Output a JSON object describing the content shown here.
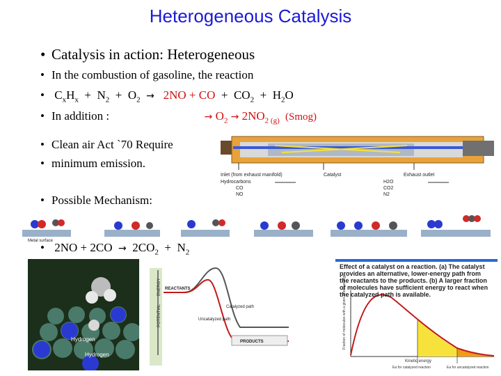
{
  "slide": {
    "title": "Heterogeneous Catalysis",
    "heading": "Catalysis in action:  Heterogeneous",
    "combustion_text": "In the combustion of gasoline, the reaction",
    "reaction": {
      "lhs_c": "C",
      "lhs_x1": "x",
      "lhs_h": "H",
      "lhs_x2": "x",
      "plus1": "+",
      "n": "N",
      "n_sub": "2",
      "plus2": "+",
      "o": "O",
      "o_sub": "2",
      "arrow": "→",
      "products_red": "2NO  +  CO",
      "plus3": "+",
      "co": "CO",
      "co_sub": "2",
      "plus4": "+",
      "h": "H",
      "h_sub": "2",
      "h_o": "O"
    },
    "addition": {
      "label": "In addition :",
      "arrow1": "→",
      "o": "O",
      "o_sub": "2",
      "arrow2": "→",
      "no": "2NO",
      "no_sub": "2 (g)",
      "smog": "(Smog)"
    },
    "clean_air": "Clean air Act `70  Require",
    "minimum": "minimum emission.",
    "possible": "Possible Mechanism:",
    "final_reaction": {
      "lhs": "2NO +  2CO",
      "arrow": "→",
      "co": "2CO",
      "co_sub": "2",
      "plus": "+",
      "n": "N",
      "n_sub": "2"
    },
    "bullet_char": "•"
  },
  "converter": {
    "inlet_label": "Inlet (from exhaust manifold)",
    "catalyst_label": "Catalyst",
    "outlet_label": "Exhaust outlet",
    "left_species": [
      "Hydrocarbons",
      "CO",
      "NO"
    ],
    "right_species": [
      "H2O",
      "CO2",
      "N2"
    ]
  },
  "mechanism": {
    "surface_label": "Metal surface"
  },
  "model3d": {
    "label1": "Hydrogen",
    "label2": "Hydrogen"
  },
  "energy_diagram": {
    "axis1": "ENERGY",
    "axis2": "POTENTIAL",
    "reactants": "REACTANTS",
    "uncatalyzed": "Uncatalyzed path",
    "catalyzed": "Catalyzed path",
    "products": "PRODUCTS"
  },
  "kinetic": {
    "caption": "Effect of a catalyst on a reaction. (a) The catalyst provides an alternative, lower-energy path from the reactants to the products. (b) A larger fraction of molecules have sufficient energy to react when the catalyzed path is available.",
    "ylabel": "Fraction of molecules with a given kinetic energy",
    "xlabel": "Kinetic energy",
    "ea_cat": "Ea for catalyzed reaction",
    "ea_uncat": "Ea for uncatalyzed reaction"
  },
  "colors": {
    "title": "#1a1ad6",
    "highlight": "#d01010",
    "orange_area": "#f29a12",
    "yellow_area": "#f6e23a",
    "curve": "#c21a1a"
  }
}
